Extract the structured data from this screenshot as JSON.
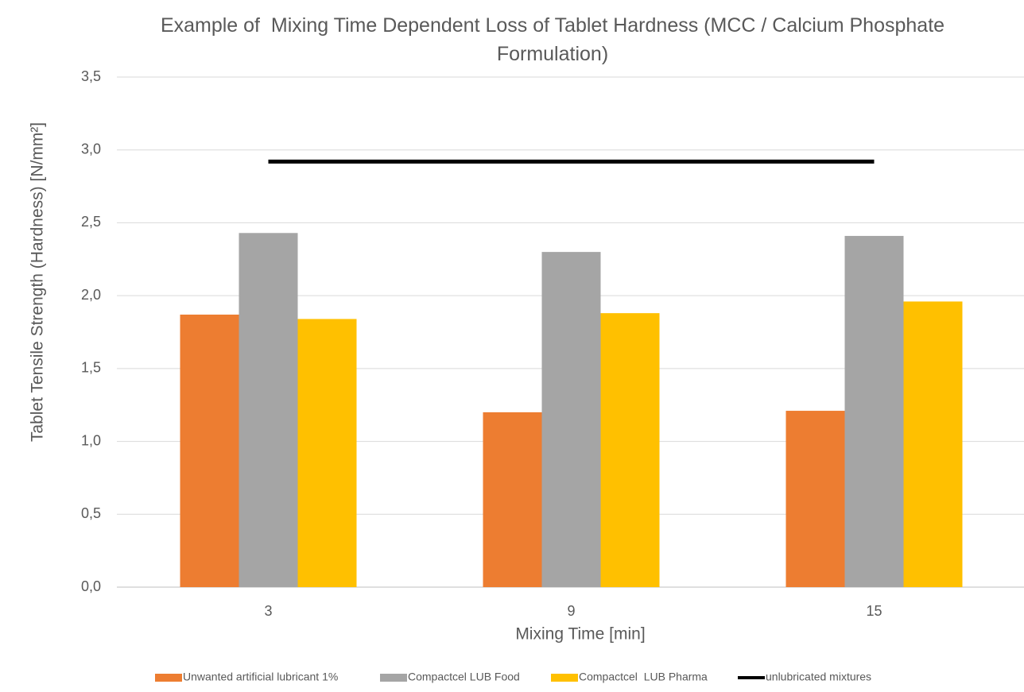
{
  "chart_data": {
    "type": "bar",
    "title": "Example of  Mixing Time Dependent Loss of Tablet Hardness (MCC / Calcium Phosphate Formulation)",
    "x_label": "Mixing Time [min]",
    "y_label": "Tablet Tensile Strength (Hardness) [N/mm²]",
    "categories": [
      "3",
      "9",
      "15"
    ],
    "series": [
      {
        "name": "Unwanted artificial lubricant 1%",
        "color": "#ED7D31",
        "values": [
          1.87,
          1.2,
          1.21
        ]
      },
      {
        "name": "Compactcel LUB Food",
        "color": "#A5A5A5",
        "values": [
          2.43,
          2.3,
          2.41
        ]
      },
      {
        "name": "Compactcel  LUB Pharma",
        "color": "#FFC000",
        "values": [
          1.84,
          1.88,
          1.96
        ]
      },
      {
        "name": "unlubricated mixtures",
        "type": "line",
        "color": "#000000",
        "values": [
          2.92,
          2.92,
          2.92
        ]
      }
    ],
    "ylim": [
      0,
      3.5
    ],
    "yticks": [
      {
        "value": 0,
        "label": "0,0"
      },
      {
        "value": 0.5,
        "label": "0,5"
      },
      {
        "value": 1,
        "label": "1,0"
      },
      {
        "value": 1.5,
        "label": "1,5"
      },
      {
        "value": 2,
        "label": "2,0"
      },
      {
        "value": 2.5,
        "label": "2,5"
      },
      {
        "value": 3,
        "label": "3,0"
      },
      {
        "value": 3.5,
        "label": "3,5"
      }
    ],
    "grid": true,
    "legend": "bottom"
  }
}
